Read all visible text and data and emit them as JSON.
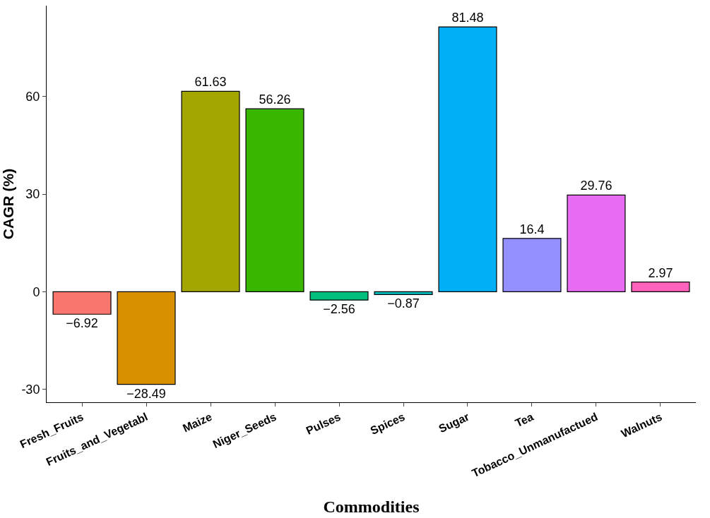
{
  "chart_data": {
    "type": "bar",
    "xlabel": "Commodities",
    "ylabel": "CAGR (%)",
    "categories": [
      "Fresh_Fruits",
      "Fruits_and_Vegetabl",
      "Maize",
      "Niger_Seeds",
      "Pulses",
      "Spices",
      "Sugar",
      "Tea",
      "Tobacco_Unmanufactued",
      "Walnuts"
    ],
    "values": [
      -6.92,
      -28.49,
      61.63,
      56.26,
      -2.56,
      -0.87,
      81.48,
      16.4,
      29.76,
      2.97
    ],
    "colors": [
      "#f8766d",
      "#d89000",
      "#a3a500",
      "#39b600",
      "#00bf7d",
      "#00bfc4",
      "#00b0f6",
      "#9590ff",
      "#e76bf3",
      "#ff62bc"
    ],
    "ylim": [
      -34,
      88
    ],
    "yticks": [
      -30,
      0,
      30,
      60
    ],
    "grid": false,
    "legend": false,
    "data_labels": true
  }
}
